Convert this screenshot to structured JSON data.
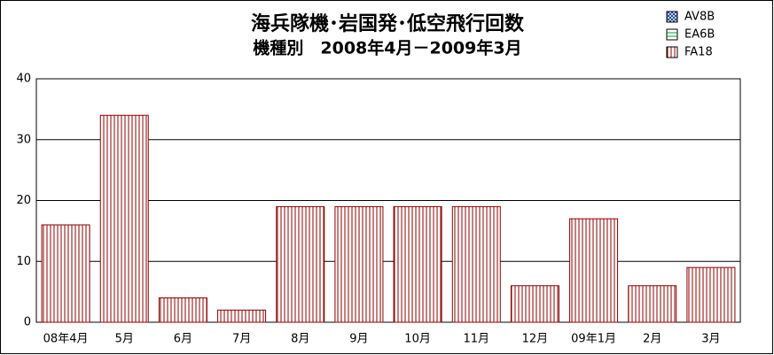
{
  "chart_data": {
    "type": "stacked_bar",
    "title": "海兵隊機･岩国発･低空飛行回数",
    "subtitle": "機種別　2008年4月－2009年3月",
    "categories": [
      "08年4月",
      "5月",
      "6月",
      "7月",
      "8月",
      "9月",
      "10月",
      "11月",
      "12月",
      "09年1月",
      "2月",
      "3月"
    ],
    "series": [
      {
        "name": "AV8B",
        "color": "#1f3f8f",
        "values": [
          0,
          0,
          0,
          0,
          0,
          0,
          0,
          0,
          0,
          0,
          0,
          0
        ]
      },
      {
        "name": "EA6B",
        "color": "#00a040",
        "values": [
          0,
          0,
          0,
          0,
          0,
          0,
          0,
          0,
          0,
          0,
          0,
          0
        ]
      },
      {
        "name": "FA18",
        "color": "#8b0000",
        "values": [
          16,
          34,
          4,
          2,
          19,
          19,
          19,
          19,
          6,
          17,
          6,
          9
        ]
      }
    ],
    "ylim": [
      0,
      40
    ],
    "yticks": [
      0,
      10,
      20,
      30,
      40
    ],
    "grid": true
  }
}
